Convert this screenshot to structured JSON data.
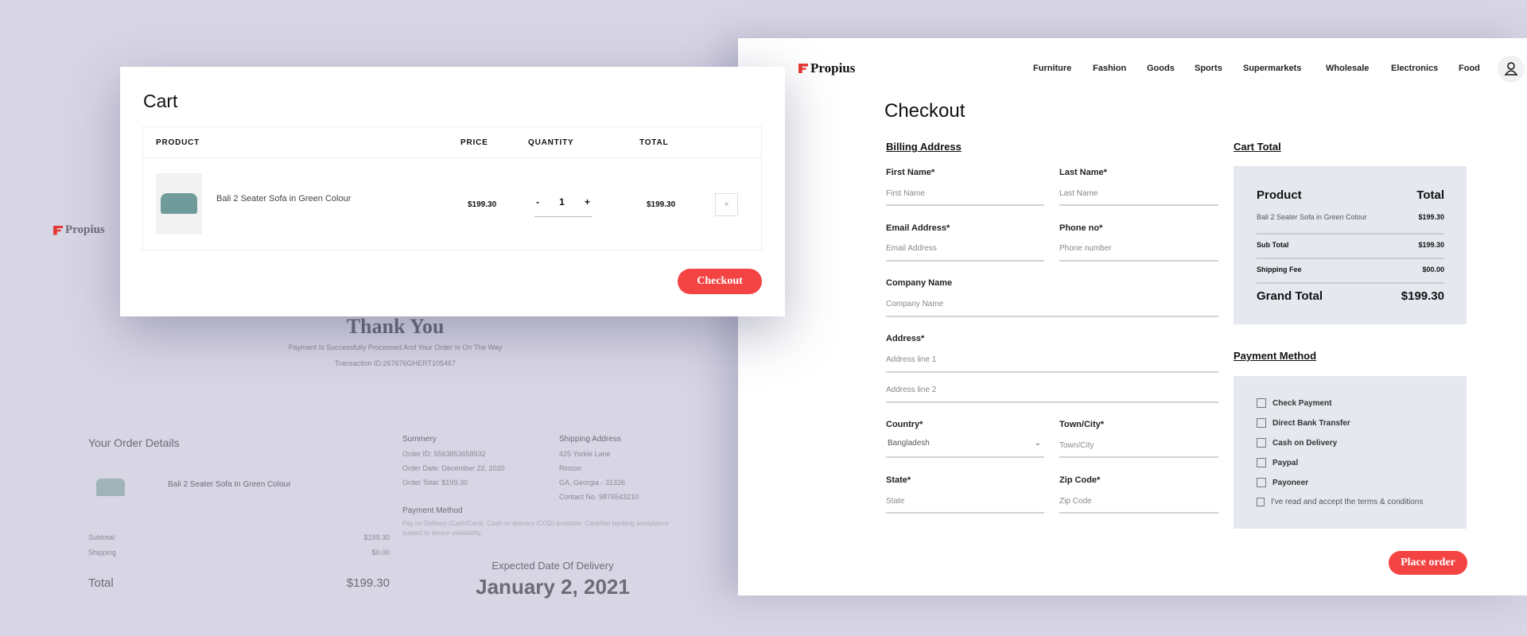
{
  "colors": {
    "background": "#d8d6e5",
    "accent": "#f44343",
    "summary_box": "#e5e8ef"
  },
  "brand": "Propius",
  "thankyou": {
    "title": "Thank You",
    "subtitle": "Payment Is Successfully Processed And Your Order Is On The Way",
    "transaction": "Transaction ID:267676GHERT105467",
    "order_details_title": "Your Order Details",
    "item_name": "Bali 2 Seater Sofa In Green Colour",
    "subtotal_label": "Subtotal",
    "subtotal_value": "$199.30",
    "shipping_label": "Shipping",
    "shipping_value": "$0.00",
    "total_label": "Total",
    "total_value": "$199.30",
    "summary_title": "Summery",
    "summary_lines": [
      "Order ID: 5563853658932",
      "Order Date: December 22, 2020",
      "Order Total: $199.30"
    ],
    "shipping_title": "Shipping Address",
    "shipping_lines": [
      "425 Yorkie Lane",
      "Rincon",
      "GA, Georgia - 31326",
      "Contact No. 9876543210"
    ],
    "payment_title": "Payment Method",
    "payment_text_1": "Pay on Delivery (Cash/Card). Cash on delivery (COD) available. Card/Net banking acceptance",
    "payment_text_2": "subject to device availability.",
    "delivery_label": "Expected Date Of Delivery",
    "delivery_date": "January 2, 2021"
  },
  "cart": {
    "title": "Cart",
    "headers": {
      "product": "PRODUCT",
      "price": "PRICE",
      "quantity": "QUANTITY",
      "total": "TOTAL"
    },
    "item": {
      "name": "Bali 2 Seater Sofa in Green Colour",
      "price": "$199.30",
      "quantity": "1",
      "total": "$199.30",
      "minus": "-",
      "plus": "+",
      "remove": "×"
    },
    "checkout_label": "Checkout"
  },
  "checkout": {
    "nav": [
      "Furniture",
      "Fashion",
      "Goods",
      "Sports",
      "Supermarkets",
      "Wholesale",
      "Electronics",
      "Food"
    ],
    "title": "Checkout",
    "billing_title": "Billing Address",
    "fields": {
      "first_name": {
        "label": "First Name*",
        "placeholder": "First Name"
      },
      "last_name": {
        "label": "Last Name*",
        "placeholder": "Last Name"
      },
      "email": {
        "label": "Email Address*",
        "placeholder": "Email Address"
      },
      "phone": {
        "label": "Phone no*",
        "placeholder": "Phone number"
      },
      "company": {
        "label": "Company Name",
        "placeholder": "Company Name"
      },
      "address": {
        "label": "Address*",
        "placeholder1": "Address line 1",
        "placeholder2": "Address line 2"
      },
      "country": {
        "label": "Country*",
        "value": "Bangladesh"
      },
      "city": {
        "label": "Town/City*",
        "placeholder": "Town/City"
      },
      "state": {
        "label": "State*",
        "placeholder": "State"
      },
      "zip": {
        "label": "Zip Code*",
        "placeholder": "Zip Code"
      }
    },
    "cart_total": {
      "title": "Cart Total",
      "product_header": "Product",
      "total_header": "Total",
      "item_name": "Bali 2 Seater Sofa in Green Colour",
      "item_price": "$199.30",
      "subtotal_label": "Sub Total",
      "subtotal_value": "$199.30",
      "shipping_label": "Shipping Fee",
      "shipping_value": "$00.00",
      "grand_label": "Grand Total",
      "grand_value": "$199.30"
    },
    "payment": {
      "title": "Payment Method",
      "options": [
        "Check Payment",
        "Direct Bank Transfer",
        "Cash on Delivery",
        "Paypal",
        "Payoneer"
      ],
      "terms": "I've read and accept the terms & conditions"
    },
    "place_order_label": "Place order"
  }
}
